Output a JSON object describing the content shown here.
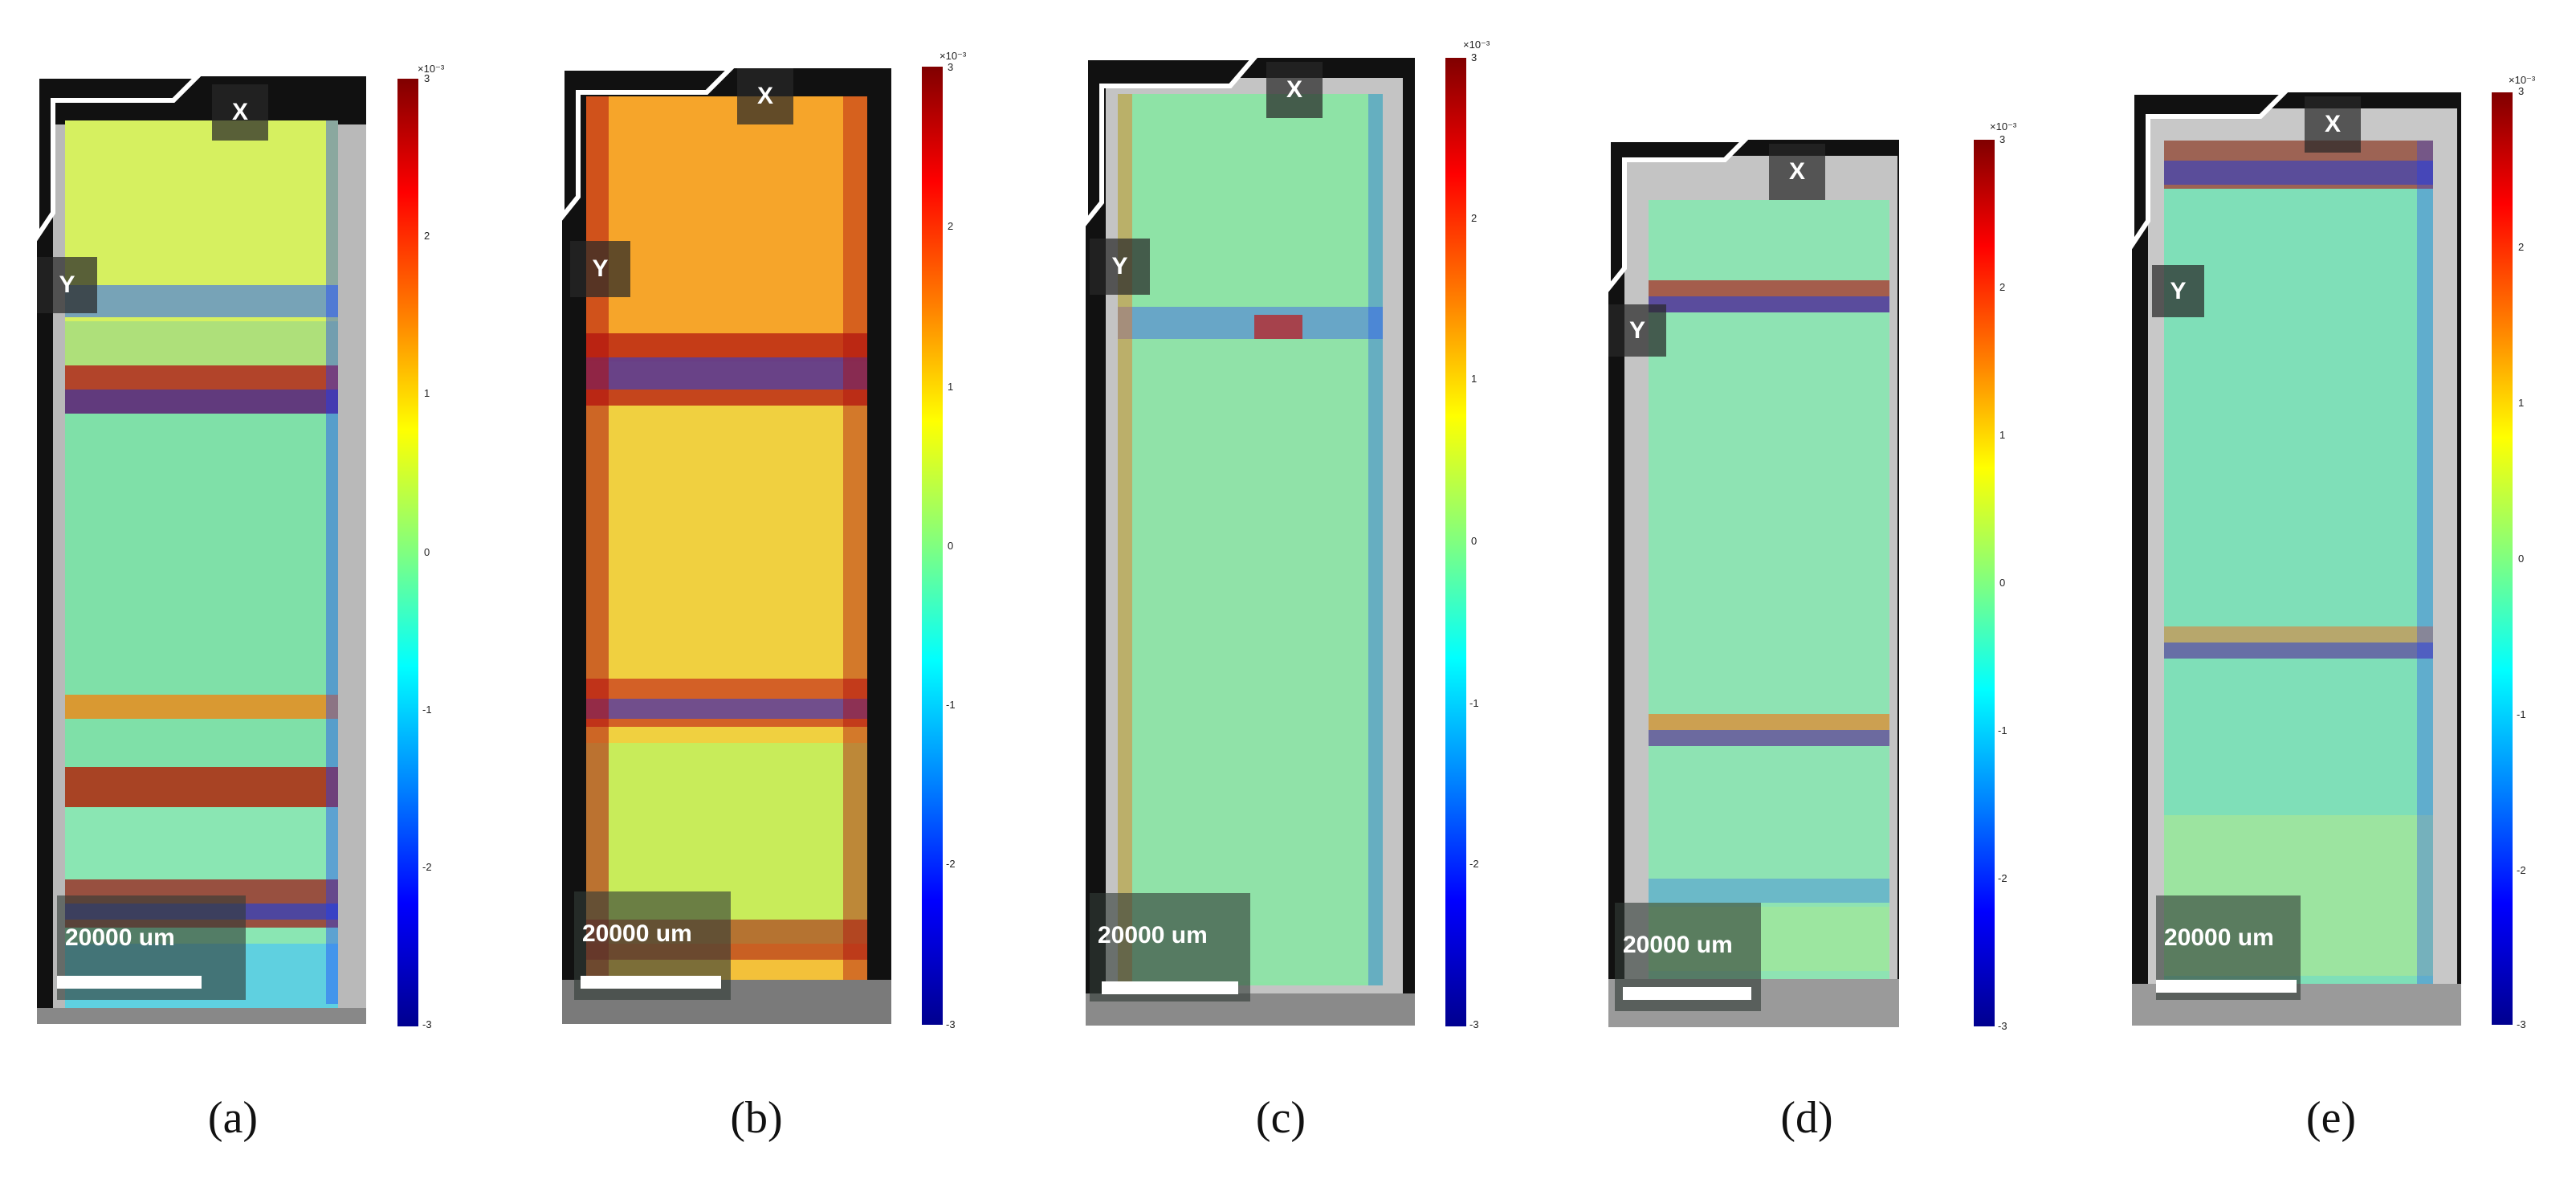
{
  "panels": [
    {
      "caption": "(a)",
      "x_label": "X",
      "y_label": "Y",
      "scale_label": "20000 um",
      "style": "a"
    },
    {
      "caption": "(b)",
      "x_label": "X",
      "y_label": "Y",
      "scale_label": "20000 um",
      "style": "b"
    },
    {
      "caption": "(c)",
      "x_label": "X",
      "y_label": "Y",
      "scale_label": "20000 um",
      "style": "c"
    },
    {
      "caption": "(d)",
      "x_label": "X",
      "y_label": "Y",
      "scale_label": "20000 um",
      "style": "d"
    },
    {
      "caption": "(e)",
      "x_label": "X",
      "y_label": "Y",
      "scale_label": "20000 um",
      "style": "e"
    }
  ],
  "colorbar": {
    "exponent": "×10⁻³",
    "ticks": [
      "3",
      "2",
      "1",
      "0",
      "-1",
      "-2",
      "-3"
    ],
    "colors": [
      "#800000",
      "#ff0000",
      "#ff8000",
      "#ffff00",
      "#80ff80",
      "#00ffff",
      "#0080ff",
      "#0000ff",
      "#00008f"
    ]
  }
}
